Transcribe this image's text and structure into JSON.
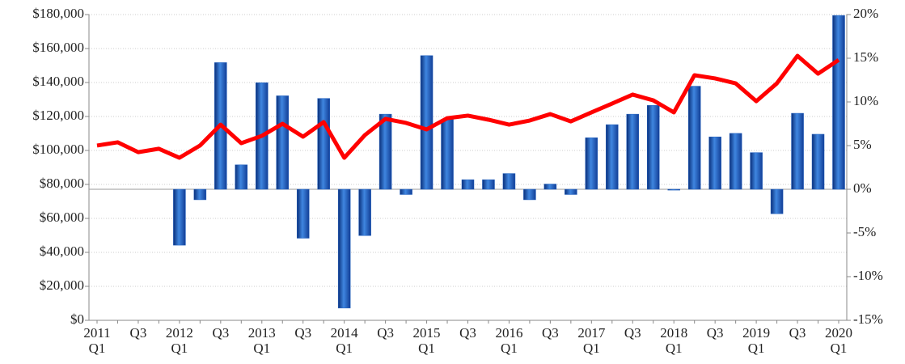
{
  "chart_data": {
    "type": "bar-line",
    "categories": [
      "2011 Q1",
      null,
      "Q3",
      null,
      "2012 Q1",
      null,
      "Q3",
      null,
      "2013 Q1",
      null,
      "Q3",
      null,
      "2014 Q1",
      null,
      "Q3",
      null,
      "2015 Q1",
      null,
      "Q3",
      null,
      "2016 Q1",
      null,
      "Q3",
      null,
      "2017 Q1",
      null,
      "Q3",
      null,
      "2018 Q1",
      null,
      "Q3",
      null,
      "2019 Q1",
      null,
      "Q3",
      null,
      "2020 Q1"
    ],
    "series": [
      {
        "kind": "bar",
        "axis": "y2",
        "color": "#1f5fbf",
        "values": [
          null,
          null,
          null,
          null,
          -6.4,
          -1.2,
          14.5,
          2.8,
          12.2,
          10.7,
          -5.6,
          10.4,
          -13.6,
          -5.3,
          8.6,
          -0.6,
          15.3,
          8.0,
          1.1,
          1.1,
          1.8,
          -1.2,
          0.6,
          -0.6,
          5.9,
          7.4,
          8.6,
          9.6,
          -0.1,
          11.8,
          6.0,
          6.4,
          4.2,
          -2.8,
          8.7,
          6.3,
          19.9
        ]
      },
      {
        "kind": "line",
        "axis": "y",
        "color": "#ff0000",
        "values": [
          102900,
          104800,
          99000,
          101000,
          95700,
          102900,
          115200,
          104300,
          108600,
          115700,
          108100,
          116700,
          95700,
          109000,
          118600,
          116200,
          112400,
          119000,
          120500,
          118100,
          115200,
          117600,
          121400,
          117100,
          122400,
          127600,
          132900,
          129500,
          122400,
          144300,
          142400,
          139500,
          129000,
          139500,
          155700,
          145200,
          153300
        ]
      }
    ],
    "ylim": [
      0,
      180000
    ],
    "yticks": [
      {
        "value": 0,
        "label": "$0"
      },
      {
        "value": 20000,
        "label": "$20,000"
      },
      {
        "value": 40000,
        "label": "$40,000"
      },
      {
        "value": 60000,
        "label": "$60,000"
      },
      {
        "value": 80000,
        "label": "$80,000"
      },
      {
        "value": 100000,
        "label": "$100,000"
      },
      {
        "value": 120000,
        "label": "$120,000"
      },
      {
        "value": 140000,
        "label": "$140,000"
      },
      {
        "value": 160000,
        "label": "$160,000"
      },
      {
        "value": 180000,
        "label": "$180,000"
      }
    ],
    "y2lim": [
      -15,
      20
    ],
    "y2ticks": [
      {
        "value": -15,
        "label": "-15%"
      },
      {
        "value": -10,
        "label": "-10%"
      },
      {
        "value": -5,
        "label": "-5%"
      },
      {
        "value": 0,
        "label": "0%"
      },
      {
        "value": 5,
        "label": "5%"
      },
      {
        "value": 10,
        "label": "10%"
      },
      {
        "value": 15,
        "label": "15%"
      },
      {
        "value": 20,
        "label": "20%"
      }
    ],
    "grid": true
  }
}
